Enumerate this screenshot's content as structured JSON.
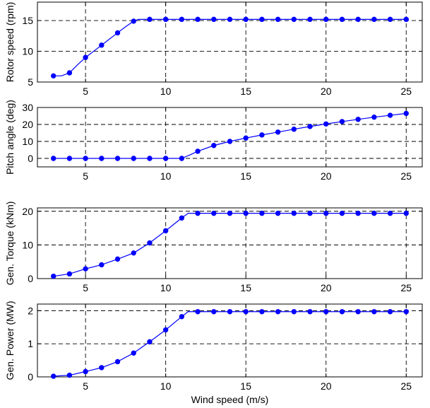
{
  "chart_data": [
    {
      "type": "line",
      "ylabel": "Rotor speed (rpm)",
      "xlim": [
        2,
        26
      ],
      "ylim": [
        5,
        18
      ],
      "xticks": [
        5,
        10,
        15,
        20,
        25
      ],
      "yticks": [
        5,
        10,
        15
      ],
      "grid": true,
      "x_curve": [
        3,
        3.5,
        4,
        4.5,
        5,
        5.5,
        6,
        6.5,
        7,
        7.5,
        8,
        8.3,
        9,
        10,
        11,
        12,
        13,
        14,
        15,
        16,
        17,
        18,
        19,
        20,
        21,
        22,
        23,
        24,
        25
      ],
      "y_curve": [
        6.0,
        6.0,
        6.5,
        7.8,
        9.0,
        10.0,
        11.0,
        12.0,
        13.0,
        14.0,
        14.9,
        15.2,
        15.2,
        15.2,
        15.2,
        15.2,
        15.2,
        15.2,
        15.2,
        15.2,
        15.2,
        15.2,
        15.2,
        15.2,
        15.2,
        15.2,
        15.2,
        15.2,
        15.2
      ],
      "x": [
        3,
        4,
        5,
        6,
        7,
        8,
        9,
        10,
        11,
        12,
        13,
        14,
        15,
        16,
        17,
        18,
        19,
        20,
        21,
        22,
        23,
        24,
        25
      ],
      "y": [
        6.0,
        6.5,
        9.0,
        11.0,
        13.0,
        14.9,
        15.2,
        15.2,
        15.2,
        15.2,
        15.2,
        15.2,
        15.2,
        15.2,
        15.2,
        15.2,
        15.2,
        15.2,
        15.2,
        15.2,
        15.2,
        15.2,
        15.2
      ],
      "color": "#0000ff"
    },
    {
      "type": "line",
      "ylabel": "Pitch angle (deg)",
      "xlim": [
        2,
        26
      ],
      "ylim": [
        -5,
        30
      ],
      "xticks": [
        5,
        10,
        15,
        20,
        25
      ],
      "yticks": [
        0,
        10,
        20,
        30
      ],
      "grid": true,
      "x_curve": [
        3,
        4,
        5,
        6,
        7,
        8,
        9,
        10,
        11,
        11.5,
        12,
        13,
        14,
        15,
        16,
        17,
        18,
        19,
        20,
        21,
        22,
        23,
        24,
        25
      ],
      "y_curve": [
        0,
        0,
        0,
        0,
        0,
        0,
        0,
        0,
        0,
        2.0,
        4.2,
        7.6,
        10.0,
        12.0,
        13.8,
        15.5,
        17.2,
        18.8,
        20.3,
        21.7,
        23.0,
        24.3,
        25.4,
        26.5
      ],
      "x": [
        3,
        4,
        5,
        6,
        7,
        8,
        9,
        10,
        11,
        12,
        13,
        14,
        15,
        16,
        17,
        18,
        19,
        20,
        21,
        22,
        23,
        24,
        25
      ],
      "y": [
        0,
        0,
        0,
        0,
        0,
        0,
        0,
        0,
        0,
        4.2,
        7.6,
        10.0,
        12.0,
        13.8,
        15.5,
        17.2,
        18.8,
        20.3,
        21.7,
        23.0,
        24.3,
        25.4,
        26.5
      ],
      "color": "#0000ff"
    },
    {
      "type": "line",
      "ylabel": "Gen. Torque (kNm)",
      "xlim": [
        2,
        26
      ],
      "ylim": [
        0,
        21
      ],
      "xticks": [
        5,
        10,
        15,
        20,
        25
      ],
      "yticks": [
        0,
        10,
        20
      ],
      "grid": true,
      "x_curve": [
        3,
        4,
        5,
        6,
        7,
        8,
        9,
        10,
        11,
        11.4,
        12,
        13,
        14,
        15,
        16,
        17,
        18,
        19,
        20,
        21,
        22,
        23,
        24,
        25
      ],
      "y_curve": [
        0.7,
        1.4,
        2.9,
        4.1,
        5.8,
        7.6,
        10.6,
        14.2,
        18.0,
        19.4,
        19.4,
        19.4,
        19.4,
        19.4,
        19.4,
        19.4,
        19.4,
        19.4,
        19.4,
        19.4,
        19.4,
        19.4,
        19.4,
        19.4
      ],
      "x": [
        3,
        4,
        5,
        6,
        7,
        8,
        9,
        10,
        11,
        12,
        13,
        14,
        15,
        16,
        17,
        18,
        19,
        20,
        21,
        22,
        23,
        24,
        25
      ],
      "y": [
        0.7,
        1.4,
        2.9,
        4.1,
        5.8,
        7.6,
        10.6,
        14.2,
        18.0,
        19.4,
        19.4,
        19.4,
        19.4,
        19.4,
        19.4,
        19.4,
        19.4,
        19.4,
        19.4,
        19.4,
        19.4,
        19.4,
        19.4
      ],
      "color": "#0000ff"
    },
    {
      "type": "line",
      "xlabel": "Wind speed (m/s)",
      "ylabel": "Gen. Power (MW)",
      "xlim": [
        2,
        26
      ],
      "ylim": [
        0,
        2.2
      ],
      "xticks": [
        5,
        10,
        15,
        20,
        25
      ],
      "yticks": [
        0,
        1,
        2
      ],
      "grid": true,
      "x_curve": [
        3,
        4,
        5,
        6,
        7,
        8,
        9,
        10,
        11,
        11.4,
        12,
        13,
        14,
        15,
        16,
        17,
        18,
        19,
        20,
        21,
        22,
        23,
        24,
        25
      ],
      "y_curve": [
        0.02,
        0.05,
        0.16,
        0.28,
        0.46,
        0.72,
        1.06,
        1.42,
        1.82,
        1.97,
        1.97,
        1.97,
        1.97,
        1.97,
        1.97,
        1.97,
        1.97,
        1.97,
        1.97,
        1.97,
        1.97,
        1.97,
        1.97,
        1.97
      ],
      "x": [
        3,
        4,
        5,
        6,
        7,
        8,
        9,
        10,
        11,
        12,
        13,
        14,
        15,
        16,
        17,
        18,
        19,
        20,
        21,
        22,
        23,
        24,
        25
      ],
      "y": [
        0.02,
        0.05,
        0.16,
        0.28,
        0.46,
        0.72,
        1.06,
        1.42,
        1.82,
        1.97,
        1.97,
        1.97,
        1.97,
        1.97,
        1.97,
        1.97,
        1.97,
        1.97,
        1.97,
        1.97,
        1.97,
        1.97,
        1.97
      ],
      "color": "#0000ff"
    }
  ]
}
